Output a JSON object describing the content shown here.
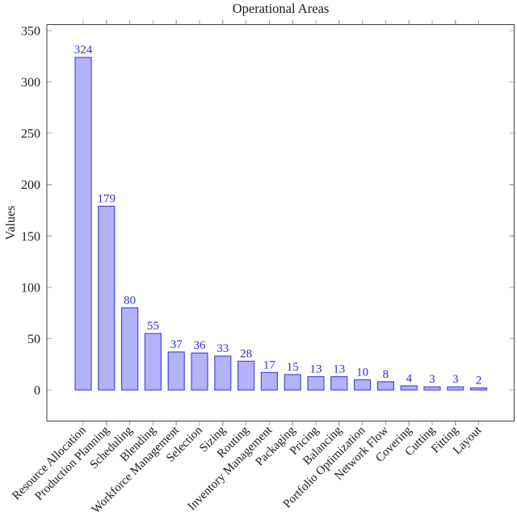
{
  "chart_data": {
    "type": "bar",
    "title": "Operational Areas",
    "xlabel": "",
    "ylabel": "Values",
    "categories": [
      "Resource Allocation",
      "Production Planning",
      "Scheduling",
      "Blending",
      "Workforce Management",
      "Selection",
      "Sizing",
      "Routing",
      "Inventory Management",
      "Packaging",
      "Pricing",
      "Balancing",
      "Portfolio Optimization",
      "Network Flow",
      "Covering",
      "Cutting",
      "Fitting",
      "Layout"
    ],
    "values": [
      324,
      179,
      80,
      55,
      37,
      36,
      33,
      28,
      17,
      15,
      13,
      13,
      10,
      8,
      4,
      3,
      3,
      2
    ],
    "yticks": [
      0,
      50,
      100,
      150,
      200,
      250,
      300,
      350
    ],
    "ylim": [
      -30,
      356
    ],
    "grid": false,
    "legend": null,
    "colors": {
      "bar_fill": "#b2b2f7",
      "bar_stroke": "#4a4ade",
      "value_label": "#2d2dd1",
      "axis_line": "#3f3f3f",
      "tick_mark": "#a9a9a9",
      "text": "#1c1c1c",
      "background": "#ffffff"
    }
  }
}
